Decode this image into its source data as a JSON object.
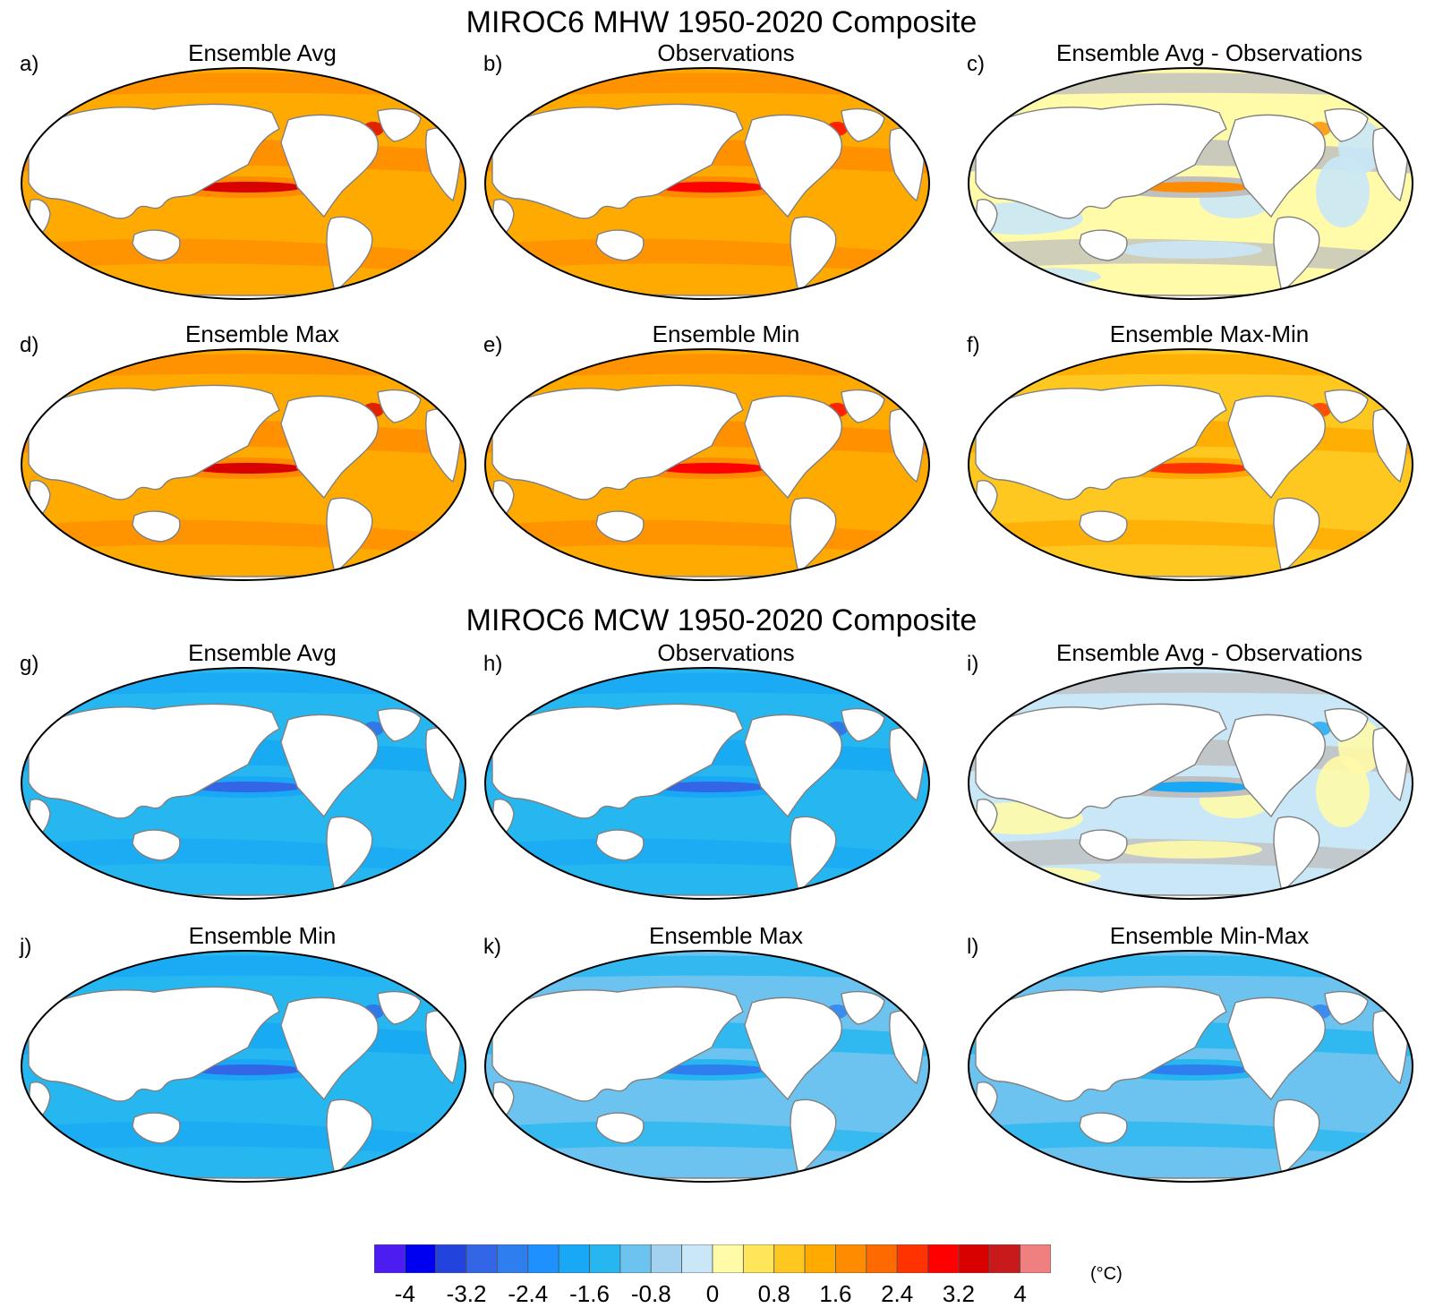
{
  "sections": [
    {
      "title": "MIROC6 MHW 1950-2020 Composite",
      "panels": [
        {
          "letter": "a)",
          "title": "Ensemble Avg",
          "kind": "warm",
          "level": 0.65
        },
        {
          "letter": "b)",
          "title": "Observations",
          "kind": "warm",
          "level": 0.55
        },
        {
          "letter": "c)",
          "title": "Ensemble Avg - Observations",
          "kind": "diff_warm",
          "level": 0.3
        },
        {
          "letter": "d)",
          "title": "Ensemble Max",
          "kind": "warm",
          "level": 0.75
        },
        {
          "letter": "e)",
          "title": "Ensemble Min",
          "kind": "warm",
          "level": 0.55
        },
        {
          "letter": "f)",
          "title": "Ensemble Max-Min",
          "kind": "warm",
          "level": 0.35
        }
      ]
    },
    {
      "title": "MIROC6 MCW 1950-2020 Composite",
      "panels": [
        {
          "letter": "g)",
          "title": "Ensemble Avg",
          "kind": "cold",
          "level": 0.5
        },
        {
          "letter": "h)",
          "title": "Observations",
          "kind": "cold",
          "level": 0.5
        },
        {
          "letter": "i)",
          "title": "Ensemble Avg - Observations",
          "kind": "diff_cold",
          "level": 0.3
        },
        {
          "letter": "j)",
          "title": "Ensemble Min",
          "kind": "cold",
          "level": 0.7
        },
        {
          "letter": "k)",
          "title": "Ensemble Max",
          "kind": "cold",
          "level": 0.45
        },
        {
          "letter": "l)",
          "title": "Ensemble Min-Max",
          "kind": "cold",
          "level": 0.3
        }
      ]
    }
  ],
  "colorbar": {
    "units": "(°C)",
    "colors": [
      "#4c1cf0",
      "#0000f0",
      "#2244dd",
      "#3366e6",
      "#2e7ef0",
      "#1e90ff",
      "#18a8f5",
      "#26b7f0",
      "#6cc3ef",
      "#a3d2f0",
      "#c9e7f7",
      "#fffba8",
      "#ffe559",
      "#ffc820",
      "#ffaa00",
      "#ff8c00",
      "#ff6a00",
      "#ff3300",
      "#ff0000",
      "#d90000",
      "#c81a1a",
      "#f08080"
    ],
    "labels": [
      "-4",
      "-3.2",
      "-2.4",
      "-1.6",
      "-0.8",
      "0",
      "0.8",
      "1.6",
      "2.4",
      "3.2",
      "4"
    ]
  }
}
